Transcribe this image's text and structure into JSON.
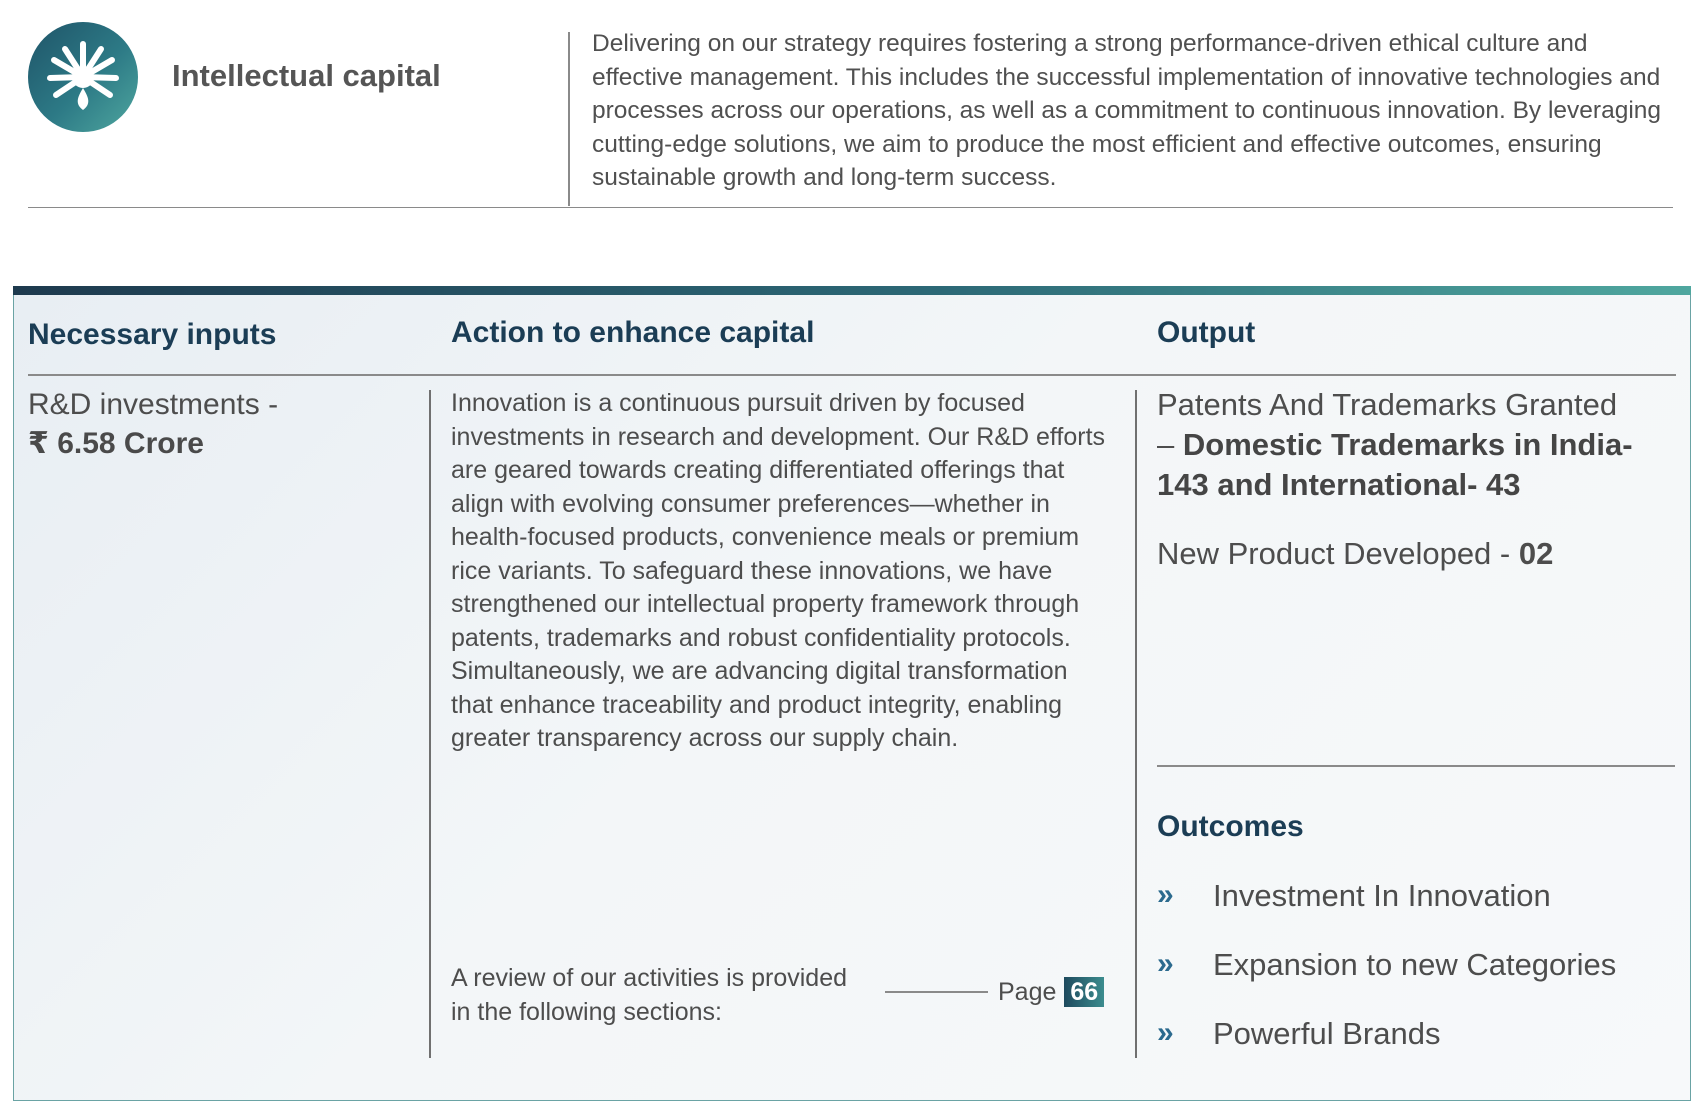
{
  "header": {
    "title": "Intellectual capital",
    "logo_icon": "burst-drop-icon",
    "intro": "Delivering on our strategy requires fostering a strong performance-driven ethical culture and effective management. This includes the successful implementation of innovative technologies and processes across our operations, as well as a commitment to continuous innovation. By leveraging cutting-edge solutions, we aim to produce the most efficient and effective outcomes, ensuring sustainable growth and long-term success."
  },
  "columns": {
    "inputs_heading": "Necessary inputs",
    "action_heading": "Action to enhance capital",
    "output_heading": "Output"
  },
  "inputs": {
    "label": "R&D investments -",
    "value": "₹ 6.58 Crore"
  },
  "action": {
    "body": "Innovation is a continuous pursuit driven by focused investments in research and development. Our R&D efforts are geared towards creating differentiated offerings that align with evolving consumer preferences—whether in health-focused products, convenience meals or premium rice variants. To safeguard these innovations, we have strengthened our intellectual property framework through patents, trademarks and robust confidentiality protocols. Simultaneously, we are advancing digital transformation that enhance traceability and product integrity, enabling greater transparency across our supply chain.",
    "review_text": "A review of our activities is provided in the following sections:",
    "page_label": "Page",
    "page_number": "66"
  },
  "output": {
    "patents_label": "Patents And Trademarks Granted",
    "patents_dash": "–",
    "patents_value": "Domestic Trademarks in India-143 and International- 43",
    "product_label": "New Product Developed -",
    "product_value": "02"
  },
  "outcomes": {
    "title": "Outcomes",
    "bullet": "»",
    "items": [
      "Investment In Innovation",
      "Expansion to new Categories",
      "Powerful Brands"
    ]
  },
  "colors": {
    "heading": "#1b3d55",
    "accent_dark": "#1e3a4e",
    "accent_teal": "#4fa79f",
    "body_text": "#4d4d4d"
  }
}
